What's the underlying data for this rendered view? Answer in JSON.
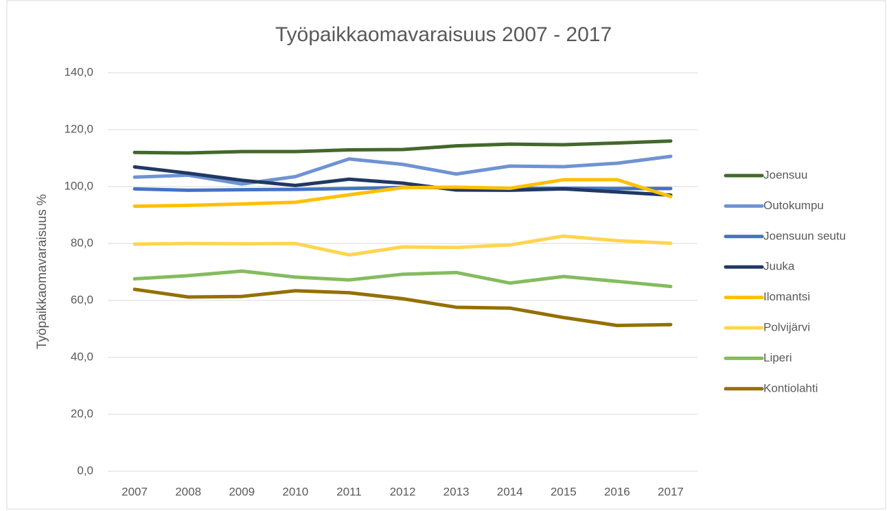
{
  "chart_data": {
    "type": "line",
    "title": "Työpaikkaomavaraisuus 2007 - 2017",
    "y_label": "Työpaikkaomavaraisuus %",
    "categories": [
      "2007",
      "2008",
      "2009",
      "2010",
      "2011",
      "2012",
      "2013",
      "2014",
      "2015",
      "2016",
      "2017"
    ],
    "series": [
      {
        "name": "Joensuu",
        "color": "#43682b",
        "values": [
          112.0,
          111.8,
          112.3,
          112.3,
          112.9,
          113.0,
          114.3,
          114.9,
          114.7,
          115.3,
          116.0
        ]
      },
      {
        "name": "Outokumpu",
        "color": "#6f93d3",
        "values": [
          103.3,
          104.0,
          100.9,
          103.5,
          109.7,
          107.8,
          104.4,
          107.2,
          107.0,
          108.2,
          110.6
        ]
      },
      {
        "name": "Joensuun seutu",
        "color": "#4472c4",
        "values": [
          99.2,
          98.7,
          98.9,
          99.0,
          99.3,
          99.7,
          99.6,
          99.3,
          99.4,
          99.3,
          99.3
        ]
      },
      {
        "name": "Juuka",
        "color": "#203864",
        "values": [
          106.9,
          104.7,
          102.2,
          100.4,
          102.6,
          101.2,
          98.8,
          98.7,
          99.2,
          98.1,
          97.0
        ]
      },
      {
        "name": "Ilomantsi",
        "color": "#ffc000",
        "values": [
          93.1,
          93.4,
          93.9,
          94.5,
          97.1,
          99.6,
          99.8,
          99.4,
          102.4,
          102.4,
          96.5
        ]
      },
      {
        "name": "Polvijärvi",
        "color": "#ffd54f",
        "values": [
          79.8,
          80.0,
          79.9,
          80.0,
          76.0,
          78.8,
          78.6,
          79.5,
          82.6,
          81.0,
          80.1
        ]
      },
      {
        "name": "Liperi",
        "color": "#84bc5e",
        "values": [
          67.6,
          68.7,
          70.3,
          68.2,
          67.2,
          69.2,
          69.8,
          66.1,
          68.4,
          66.7,
          64.9
        ]
      },
      {
        "name": "Kontiolahti",
        "color": "#947000",
        "values": [
          63.9,
          61.2,
          61.4,
          63.4,
          62.7,
          60.6,
          57.6,
          57.3,
          54.0,
          51.2,
          51.5
        ]
      }
    ],
    "ylim": [
      0,
      140
    ],
    "yticks": [
      {
        "value": 0,
        "label": "0,0"
      },
      {
        "value": 20,
        "label": "20,0"
      },
      {
        "value": 40,
        "label": "40,0"
      },
      {
        "value": 60,
        "label": "60,0"
      },
      {
        "value": 80,
        "label": "80,0"
      },
      {
        "value": 100,
        "label": "100,0"
      },
      {
        "value": 120,
        "label": "120,0"
      },
      {
        "value": 140,
        "label": "140,0"
      }
    ],
    "grid": true,
    "legend": "right"
  }
}
